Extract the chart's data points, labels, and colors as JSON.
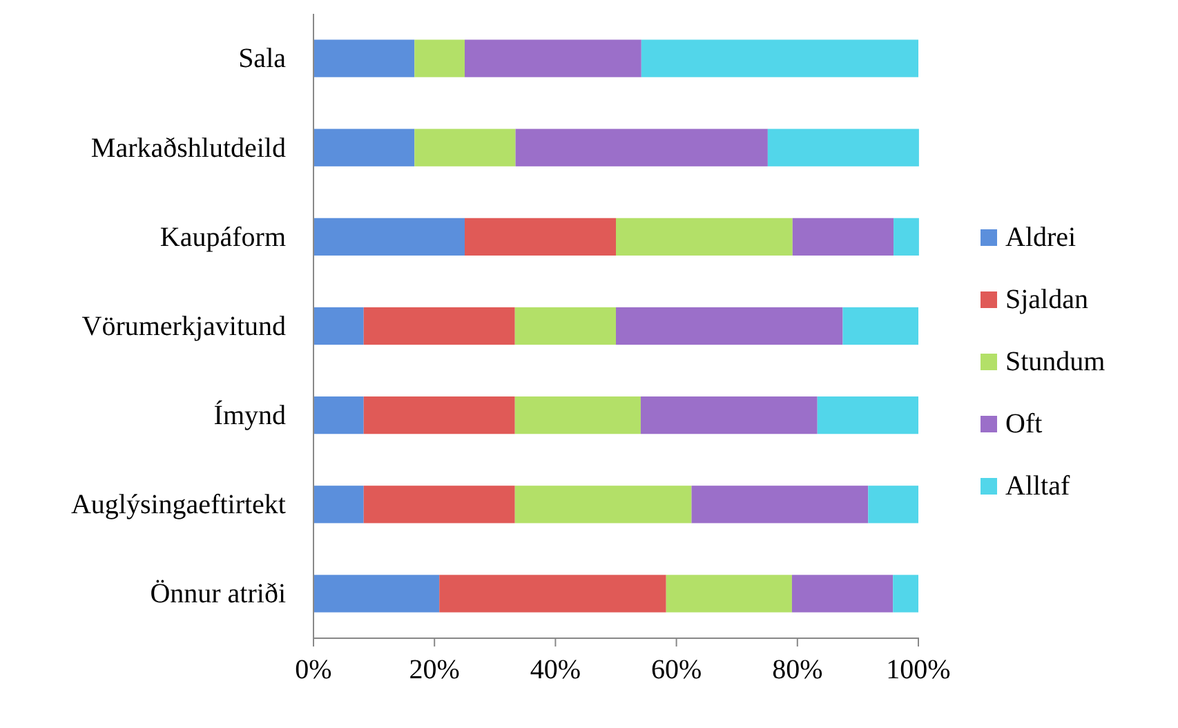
{
  "chart_data": {
    "type": "bar",
    "orientation": "horizontal",
    "stacked": true,
    "categories": [
      "Sala",
      "Markaðshlutdeild",
      "Kaupáform",
      "Vörumerkjavitund",
      "Ímynd",
      "Auglýsingaeftirtekt",
      "Önnur atriði"
    ],
    "series": [
      {
        "name": "Aldrei",
        "color": "#5b8fdc",
        "values": [
          16.7,
          16.7,
          25,
          8.3,
          8.3,
          8.3,
          20.8
        ]
      },
      {
        "name": "Sjaldan",
        "color": "#e05a57",
        "values": [
          0,
          0,
          25,
          25,
          25,
          25,
          37.5
        ]
      },
      {
        "name": "Stundum",
        "color": "#b3e068",
        "values": [
          8.3,
          16.7,
          29.2,
          16.7,
          20.8,
          29.2,
          20.8
        ]
      },
      {
        "name": "Oft",
        "color": "#9b6fc9",
        "values": [
          29.2,
          41.7,
          16.7,
          37.5,
          29.2,
          29.2,
          16.7
        ]
      },
      {
        "name": "Alltaf",
        "color": "#52d6ea",
        "values": [
          45.8,
          25,
          4.2,
          12.5,
          16.7,
          8.3,
          4.2
        ]
      }
    ],
    "xlim": [
      0,
      100
    ],
    "xticks": [
      {
        "value": 0,
        "label": "0%"
      },
      {
        "value": 20,
        "label": "20%"
      },
      {
        "value": 40,
        "label": "40%"
      },
      {
        "value": 60,
        "label": "60%"
      },
      {
        "value": 80,
        "label": "80%"
      },
      {
        "value": 100,
        "label": "100%"
      }
    ],
    "legend": "right"
  }
}
